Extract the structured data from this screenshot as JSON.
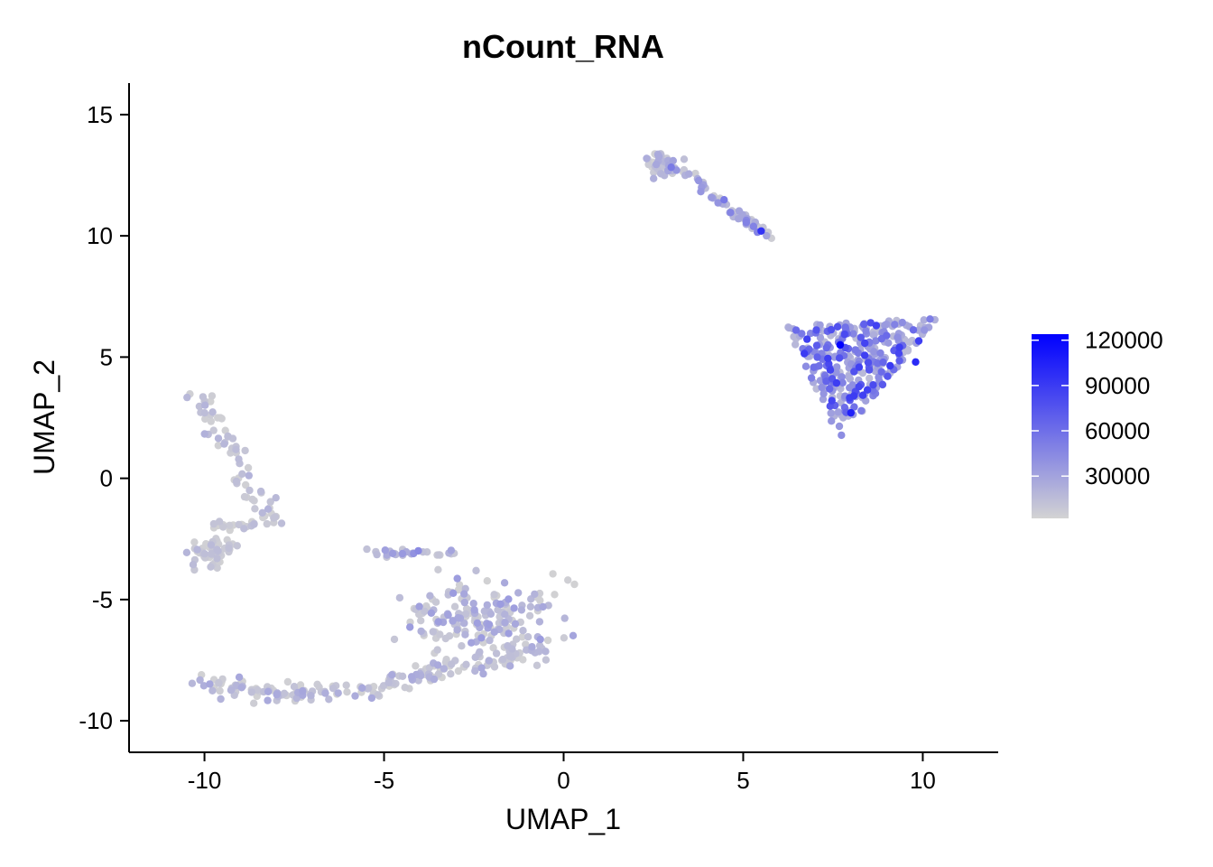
{
  "chart_data": {
    "type": "scatter",
    "title": "nCount_RNA",
    "xlabel": "UMAP_1",
    "ylabel": "UMAP_2",
    "xlim": [
      -12.1,
      12.1
    ],
    "ylim": [
      -11.3,
      16.3
    ],
    "x_ticks": [
      -10,
      -5,
      0,
      5,
      10
    ],
    "y_ticks": [
      -10,
      -5,
      0,
      5,
      10,
      15
    ],
    "x_tick_labels": [
      "-10",
      "-5",
      "0",
      "5",
      "10"
    ],
    "y_tick_labels": [
      "-10",
      "-5",
      "0",
      "5",
      "10",
      "15"
    ],
    "grid": false,
    "legend": {
      "position": "right",
      "type": "continuous colorbar",
      "min": 2000,
      "max": 124000,
      "ticks": [
        30000,
        60000,
        90000,
        120000
      ],
      "tick_labels": [
        "30000",
        "60000",
        "90000",
        "120000"
      ],
      "low_color": "#d3d3d3",
      "high_color": "#0000ff"
    },
    "clusters": [
      {
        "shape": "triangle",
        "vertices": [
          [
            6.2,
            6.3
          ],
          [
            10.4,
            6.6
          ],
          [
            7.7,
            1.6
          ]
        ],
        "n_points": 310,
        "value_range": [
          15000,
          90000
        ]
      },
      {
        "shape": "band",
        "path": [
          [
            -10.4,
            3.5
          ],
          [
            -10.0,
            3.0
          ],
          [
            -9.5,
            2.0
          ],
          [
            -9.2,
            1.0
          ],
          [
            -8.9,
            0.0
          ],
          [
            -8.6,
            -0.6
          ],
          [
            -8.3,
            -1.2
          ],
          [
            -7.9,
            -1.6
          ]
        ],
        "width": 0.5,
        "n_points": 60,
        "value_range": [
          3000,
          22000
        ]
      },
      {
        "shape": "blob",
        "center": [
          -9.8,
          -3.0
        ],
        "spread": [
          0.5,
          0.6
        ],
        "n_points": 60,
        "value_range": [
          3000,
          20000
        ]
      },
      {
        "shape": "band",
        "path": [
          [
            -9.7,
            -1.9
          ],
          [
            -9.0,
            -2.0
          ],
          [
            -8.3,
            -1.8
          ],
          [
            -7.9,
            -1.6
          ]
        ],
        "width": 0.3,
        "n_points": 25,
        "value_range": [
          3000,
          18000
        ]
      },
      {
        "shape": "band",
        "path": [
          [
            -10.0,
            -8.4
          ],
          [
            -9.0,
            -8.7
          ],
          [
            -7.5,
            -8.9
          ],
          [
            -6.0,
            -8.8
          ],
          [
            -4.5,
            -8.3
          ],
          [
            -3.0,
            -7.8
          ],
          [
            -1.5,
            -7.3
          ],
          [
            -0.4,
            -7.0
          ]
        ],
        "width": 0.5,
        "n_points": 190,
        "value_range": [
          3000,
          28000
        ]
      },
      {
        "shape": "blob",
        "center": [
          -2.2,
          -5.8
        ],
        "spread": [
          1.8,
          1.2
        ],
        "n_points": 170,
        "value_range": [
          3000,
          35000
        ]
      },
      {
        "shape": "band",
        "path": [
          [
            -5.3,
            -3.0
          ],
          [
            -4.2,
            -3.1
          ],
          [
            -3.0,
            -3.0
          ]
        ],
        "width": 0.25,
        "n_points": 30,
        "value_range": [
          5000,
          50000
        ]
      },
      {
        "shape": "blob",
        "center": [
          2.8,
          13.0
        ],
        "spread": [
          0.35,
          0.45
        ],
        "n_points": 50,
        "value_range": [
          3000,
          30000
        ]
      },
      {
        "shape": "band",
        "path": [
          [
            3.0,
            12.7
          ],
          [
            3.7,
            12.4
          ],
          [
            4.2,
            11.6
          ],
          [
            4.8,
            11.0
          ],
          [
            5.3,
            10.4
          ],
          [
            5.6,
            10.0
          ]
        ],
        "width": 0.25,
        "n_points": 55,
        "value_range": [
          5000,
          55000
        ]
      }
    ]
  }
}
